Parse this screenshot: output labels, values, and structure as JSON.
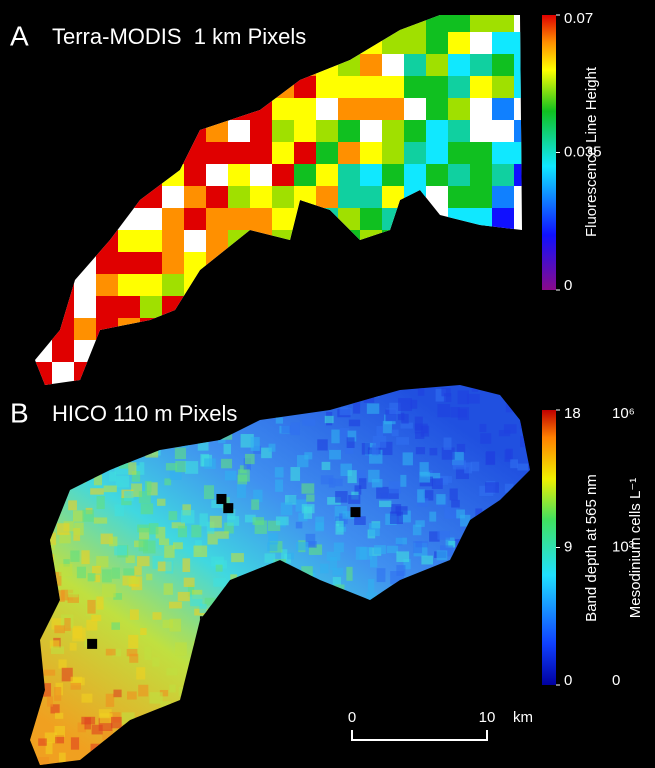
{
  "panels": [
    {
      "label": "A",
      "title": "Terra-MODIS  1 km Pixels",
      "colorbar": {
        "title": "Fluorescence Line Height",
        "lim": [
          0,
          0.07
        ],
        "ticks": [
          0.07,
          0.035,
          0
        ]
      }
    },
    {
      "label": "B",
      "title": "HICO 110 m Pixels",
      "colorbar": {
        "title": "Band depth at 565 nm",
        "lim": [
          0,
          18
        ],
        "ticks": [
          18,
          9,
          0
        ]
      },
      "colorbar2": {
        "title": "Mesodinium cells L⁻¹",
        "ticks": [
          {
            "value": 1000000,
            "label": "10⁶"
          },
          {
            "value": 1000,
            "label": "10³"
          },
          0
        ]
      }
    }
  ],
  "scale_bar": {
    "lim": [
      0,
      10
    ],
    "ticks": [
      0,
      10
    ],
    "unit": "km"
  }
}
